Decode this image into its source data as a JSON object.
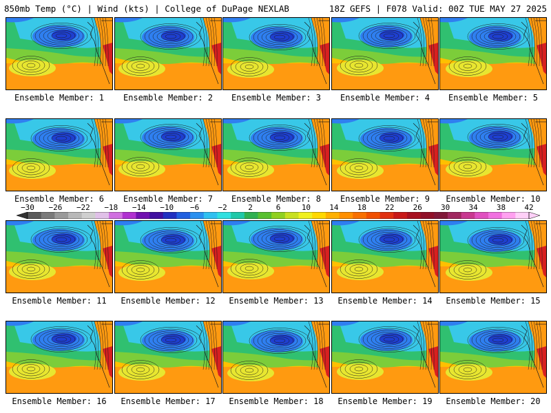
{
  "header": {
    "left": "850mb Temp (°C) | Wind (kts) | College of DuPage NEXLAB",
    "right": "18Z GEFS | F078 Valid: 00Z TUE MAY 27 2025"
  },
  "panel_label_prefix": "Ensemble Member:",
  "members": [
    {
      "id": 1,
      "label": "Ensemble Member: 1"
    },
    {
      "id": 2,
      "label": "Ensemble Member: 2"
    },
    {
      "id": 3,
      "label": "Ensemble Member: 3"
    },
    {
      "id": 4,
      "label": "Ensemble Member: 4"
    },
    {
      "id": 5,
      "label": "Ensemble Member: 5"
    },
    {
      "id": 6,
      "label": "Ensemble Member: 6"
    },
    {
      "id": 7,
      "label": "Ensemble Member: 7"
    },
    {
      "id": 8,
      "label": "Ensemble Member: 8"
    },
    {
      "id": 9,
      "label": "Ensemble Member: 9"
    },
    {
      "id": 10,
      "label": "Ensemble Member: 10"
    },
    {
      "id": 11,
      "label": "Ensemble Member: 11"
    },
    {
      "id": 12,
      "label": "Ensemble Member: 12"
    },
    {
      "id": 13,
      "label": "Ensemble Member: 13"
    },
    {
      "id": 14,
      "label": "Ensemble Member: 14"
    },
    {
      "id": 15,
      "label": "Ensemble Member: 15"
    },
    {
      "id": 16,
      "label": "Ensemble Member: 16"
    },
    {
      "id": 17,
      "label": "Ensemble Member: 17"
    },
    {
      "id": 18,
      "label": "Ensemble Member: 18"
    },
    {
      "id": 19,
      "label": "Ensemble Member: 19"
    },
    {
      "id": 20,
      "label": "Ensemble Member: 20"
    }
  ],
  "colorbar": {
    "ticks": [
      -30,
      -26,
      -22,
      -18,
      -14,
      -10,
      -6,
      -2,
      2,
      6,
      10,
      14,
      18,
      22,
      26,
      30,
      34,
      38,
      42
    ],
    "colors": [
      "#5a5a5a",
      "#7a7a7a",
      "#9a9a9a",
      "#b8b8b8",
      "#cfcfcf",
      "#e0c0e8",
      "#d070e0",
      "#b030d0",
      "#7010b0",
      "#4010a0",
      "#2030c0",
      "#2060e0",
      "#2a90f0",
      "#30c0f0",
      "#30e0e0",
      "#20c8a8",
      "#30b050",
      "#58c030",
      "#90d020",
      "#c8e020",
      "#f0f020",
      "#ffd800",
      "#ffb000",
      "#ff9000",
      "#f87000",
      "#f05000",
      "#e03010",
      "#c81818",
      "#a81020",
      "#901028",
      "#801838",
      "#a02860",
      "#c83890",
      "#e050c0",
      "#f070e0",
      "#ffa0f0",
      "#ffd0f8"
    ]
  },
  "map_colors": {
    "cold_core": "#1e3fd0",
    "cold": "#2f7ff0",
    "cool": "#38c8e8",
    "mild": "#30c070",
    "green": "#7ccd3a",
    "warm": "#e8e630",
    "warmer": "#ffc000",
    "hot": "#ff9a10",
    "hottest": "#d82020",
    "contour": "#1a1a1a"
  }
}
